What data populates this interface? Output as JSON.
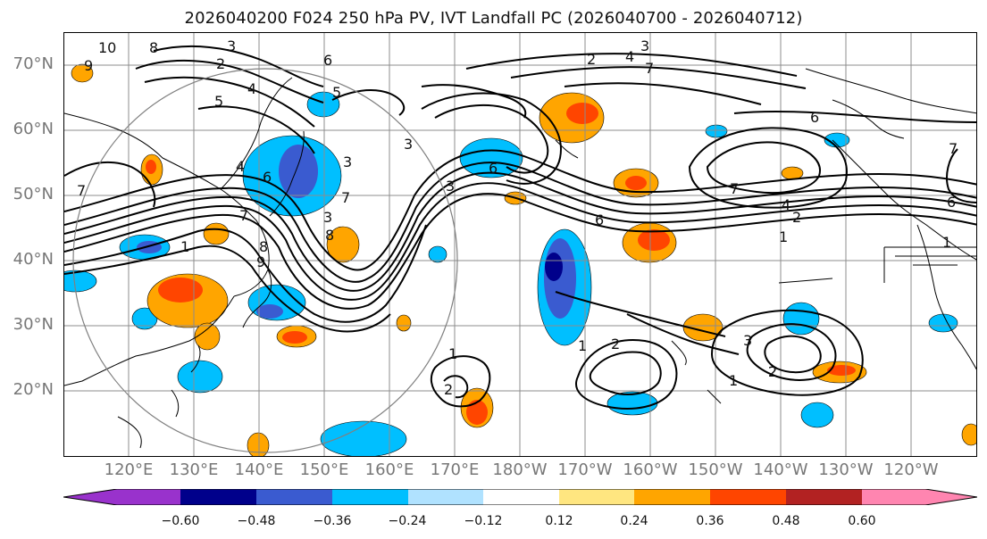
{
  "title": "2026040200 F024 250 hPa PV, IVT Landfall PC (2026040700 - 2026040712)",
  "lat_labels": [
    "70°N",
    "60°N",
    "50°N",
    "40°N",
    "30°N",
    "20°N"
  ],
  "lon_labels": [
    "120°E",
    "130°E",
    "140°E",
    "150°E",
    "160°E",
    "170°E",
    "180°W",
    "170°W",
    "160°W",
    "150°W",
    "140°W",
    "130°W",
    "120°W"
  ],
  "colorbar": {
    "colors": [
      "#9932cc",
      "#00008b",
      "#3a5bd0",
      "#00bfff",
      "#b0e2ff",
      "#ffffff",
      "#ffe680",
      "#ffa500",
      "#ff4500",
      "#b22222",
      "#ff85b0"
    ],
    "tick_labels": [
      "−0.60",
      "−0.48",
      "−0.36",
      "−0.24",
      "−0.12",
      "0.12",
      "0.24",
      "0.36",
      "0.48",
      "0.60"
    ]
  },
  "contour_labels": [
    "10",
    "9",
    "8",
    "3",
    "2",
    "5",
    "4",
    "5",
    "6",
    "3",
    "4",
    "3",
    "7",
    "6",
    "3",
    "2",
    "4",
    "3",
    "7",
    "6",
    "6",
    "6",
    "7",
    "4",
    "2",
    "1",
    "1",
    "7",
    "6",
    "7",
    "8",
    "7",
    "1",
    "9",
    "8",
    "3",
    "2",
    "1",
    "1",
    "2",
    "2",
    "1",
    "2",
    "3"
  ],
  "colors": {
    "map_line": "#000000",
    "grid": "#8c8c8c",
    "axis_label": "#777777"
  }
}
